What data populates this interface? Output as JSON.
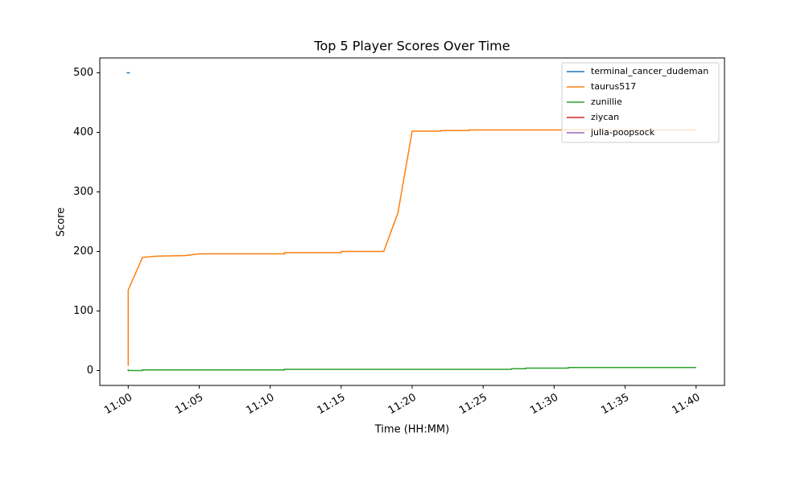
{
  "chart_data": {
    "type": "line",
    "title": "Top 5 Player Scores Over Time",
    "x_label": "Time (HH:MM)",
    "y_label": "Score",
    "xlim": [
      "10:58",
      "11:42"
    ],
    "xticks": [
      "11:00",
      "11:05",
      "11:10",
      "11:15",
      "11:20",
      "11:25",
      "11:30",
      "11:35",
      "11:40"
    ],
    "ylim": [
      -25,
      525
    ],
    "yticks": [
      0,
      100,
      200,
      300,
      400,
      500
    ],
    "legend": "upper right",
    "series": [
      {
        "name": "terminal_cancer_dudeman",
        "color": "#1f77b4",
        "x": [
          "11:00",
          "11:00"
        ],
        "values": [
          500,
          500
        ]
      },
      {
        "name": "taurus517",
        "color": "#ff7f0e",
        "x": [
          "11:00",
          "11:00",
          "11:01",
          "11:02",
          "11:04",
          "11:05",
          "11:11",
          "11:11",
          "11:15",
          "11:15",
          "11:18",
          "11:19",
          "11:20",
          "11:22",
          "11:22",
          "11:24",
          "11:24",
          "11:40"
        ],
        "values": [
          8,
          135,
          190,
          192,
          193,
          196,
          196,
          198,
          198,
          200,
          200,
          265,
          402,
          402,
          403,
          403,
          404,
          404
        ]
      },
      {
        "name": "zunillie",
        "color": "#2ca02c",
        "x": [
          "11:00",
          "11:00",
          "11:01",
          "11:01",
          "11:11",
          "11:11",
          "11:27",
          "11:27",
          "11:28",
          "11:28",
          "11:31",
          "11:31",
          "11:40"
        ],
        "values": [
          2,
          0,
          0,
          1,
          1,
          2,
          2,
          3,
          3,
          4,
          4,
          5,
          5
        ]
      },
      {
        "name": "ziycan",
        "color": "#d62728",
        "x": [
          "11:00"
        ],
        "values": [
          0
        ]
      },
      {
        "name": "julia-poopsock",
        "color": "#9467bd",
        "x": [
          "11:00"
        ],
        "values": [
          0
        ]
      }
    ]
  }
}
